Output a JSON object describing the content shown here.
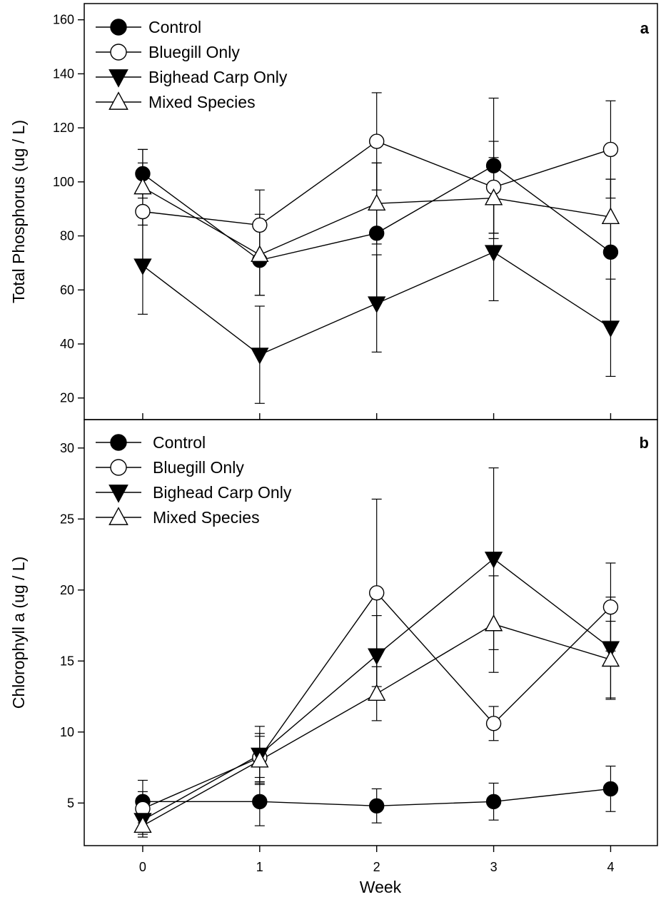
{
  "chart_data": [
    {
      "type": "line",
      "panel_label": "a",
      "x": [
        0,
        1,
        2,
        3,
        4
      ],
      "ylabel": "Total Phosphorus (ug / L)",
      "yticks": [
        20,
        40,
        60,
        80,
        100,
        120,
        140,
        160
      ],
      "ylim": [
        12,
        166
      ],
      "xlim": [
        -0.5,
        4.4
      ],
      "legend_position": "top-left",
      "series": [
        {
          "name": "Control",
          "marker": "filled-circle",
          "values": [
            103,
            71,
            81,
            106,
            74
          ],
          "err": [
            9,
            13,
            26,
            25,
            27
          ]
        },
        {
          "name": "Bluegill Only",
          "marker": "open-circle",
          "values": [
            89,
            84,
            115,
            98,
            112
          ],
          "err": [
            18,
            13,
            18,
            17,
            18
          ]
        },
        {
          "name": "Bighead Carp Only",
          "marker": "filled-triangle-down",
          "values": [
            69,
            36,
            55,
            74,
            46
          ],
          "err": [
            18,
            18,
            18,
            18,
            18
          ]
        },
        {
          "name": "Mixed Species",
          "marker": "open-triangle-up",
          "values": [
            98,
            73,
            92,
            94,
            87
          ],
          "err": [
            14,
            15,
            15,
            15,
            14
          ]
        }
      ]
    },
    {
      "type": "line",
      "panel_label": "b",
      "x": [
        0,
        1,
        2,
        3,
        4
      ],
      "ylabel": "Chlorophyll a (ug / L)",
      "xlabel": "Week",
      "xticks": [
        0,
        1,
        2,
        3,
        4
      ],
      "yticks": [
        5,
        10,
        15,
        20,
        25,
        30
      ],
      "ylim": [
        2,
        32
      ],
      "xlim": [
        -0.5,
        4.4
      ],
      "legend_position": "top-left",
      "series": [
        {
          "name": "Control",
          "marker": "filled-circle",
          "values": [
            5.1,
            5.1,
            4.8,
            5.1,
            6.0
          ],
          "err": [
            1.5,
            1.7,
            1.2,
            1.3,
            1.6
          ]
        },
        {
          "name": "Bluegill Only",
          "marker": "open-circle",
          "values": [
            4.6,
            8.2,
            19.8,
            10.6,
            18.8
          ],
          "err": [
            1.2,
            1.7,
            6.6,
            1.2,
            3.1
          ]
        },
        {
          "name": "Bighead Carp Only",
          "marker": "filled-triangle-down",
          "values": [
            3.8,
            8.4,
            15.4,
            22.2,
            15.9
          ],
          "err": [
            1.0,
            2.0,
            2.8,
            6.4,
            3.6
          ]
        },
        {
          "name": "Mixed Species",
          "marker": "open-triangle-up",
          "values": [
            3.4,
            8.0,
            12.7,
            17.6,
            15.1
          ],
          "err": [
            0.8,
            1.7,
            1.9,
            3.4,
            2.7
          ]
        }
      ]
    }
  ]
}
